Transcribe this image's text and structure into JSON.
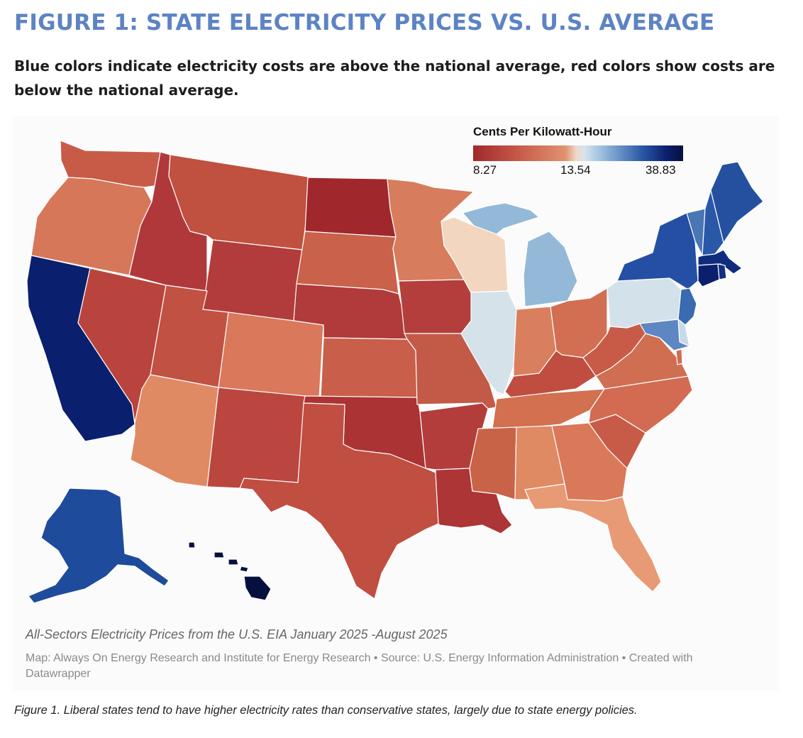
{
  "header": {
    "title": "FIGURE 1: STATE ELECTRICITY PRICES VS. U.S. AVERAGE",
    "subtitle": "Blue colors indicate electricity costs are above the national average, red colors show costs are below the national average."
  },
  "legend": {
    "title": "Cents Per Kilowatt-Hour",
    "min_label": "8.27",
    "mid_label": "13.54",
    "max_label": "38.83",
    "min": 8.27,
    "mid": 13.54,
    "max": 38.83
  },
  "colors": {
    "lowest": "#a0282c",
    "low": "#c85b48",
    "moderate_low": "#d7775a",
    "near_avg_low": "#e4946c",
    "wisconsin_tone": "#f2d6c0",
    "near_avg_high": "#d6e2ea",
    "above": "#8fb6d8",
    "high": "#2f5fae",
    "very_high": "#0f2d7e",
    "highest": "#06103f",
    "title_blue": "#5d83c4"
  },
  "map": {
    "caption": "All-Sectors Electricity Prices from the U.S. EIA January 2025 -August 2025",
    "credits": "Map: Always On Energy Research and Institute for Energy Research • Source: U.S. Energy Information Administration • Created with Datawrapper",
    "states": [
      {
        "id": "WA",
        "color": "#c85b48"
      },
      {
        "id": "OR",
        "color": "#d7775a"
      },
      {
        "id": "CA",
        "color": "#0a1f6e"
      },
      {
        "id": "NV",
        "color": "#b9443d"
      },
      {
        "id": "ID",
        "color": "#b0383a"
      },
      {
        "id": "MT",
        "color": "#c0503f"
      },
      {
        "id": "WY",
        "color": "#b23c3b"
      },
      {
        "id": "UT",
        "color": "#c15142"
      },
      {
        "id": "AZ",
        "color": "#e08a64"
      },
      {
        "id": "CO",
        "color": "#d9785a"
      },
      {
        "id": "NM",
        "color": "#bb463f"
      },
      {
        "id": "ND",
        "color": "#a0282c"
      },
      {
        "id": "SD",
        "color": "#c9614b"
      },
      {
        "id": "NE",
        "color": "#b13a3a"
      },
      {
        "id": "KS",
        "color": "#c95f4a"
      },
      {
        "id": "OK",
        "color": "#ab3334"
      },
      {
        "id": "TX",
        "color": "#c04e41"
      },
      {
        "id": "MN",
        "color": "#d77c5d"
      },
      {
        "id": "IA",
        "color": "#b43e3b"
      },
      {
        "id": "MO",
        "color": "#c35a47"
      },
      {
        "id": "AR",
        "color": "#b23d3b"
      },
      {
        "id": "LA",
        "color": "#ad3535"
      },
      {
        "id": "WI",
        "color": "#f2d6c0"
      },
      {
        "id": "IL",
        "color": "#d6e2ea"
      },
      {
        "id": "MI",
        "color": "#94b9d8"
      },
      {
        "id": "IN",
        "color": "#da7f5e"
      },
      {
        "id": "OH",
        "color": "#d26f53"
      },
      {
        "id": "KY",
        "color": "#bf4d40"
      },
      {
        "id": "TN",
        "color": "#d2704f"
      },
      {
        "id": "MS",
        "color": "#c96348"
      },
      {
        "id": "AL",
        "color": "#df8a63"
      },
      {
        "id": "GA",
        "color": "#d9795a"
      },
      {
        "id": "FL",
        "color": "#e79a74"
      },
      {
        "id": "SC",
        "color": "#c85b48"
      },
      {
        "id": "NC",
        "color": "#d26b51"
      },
      {
        "id": "VA",
        "color": "#d06e52"
      },
      {
        "id": "WV",
        "color": "#c85b48"
      },
      {
        "id": "PA",
        "color": "#d3e1ea"
      },
      {
        "id": "NY",
        "color": "#244fa4"
      },
      {
        "id": "VT",
        "color": "#4a76b4"
      },
      {
        "id": "NH",
        "color": "#2a58a8"
      },
      {
        "id": "ME",
        "color": "#24509f"
      },
      {
        "id": "MA",
        "color": "#0f2d7e"
      },
      {
        "id": "CT",
        "color": "#0a1f6e"
      },
      {
        "id": "RI",
        "color": "#122f80"
      },
      {
        "id": "NJ",
        "color": "#3a6ab0"
      },
      {
        "id": "DE",
        "color": "#c9dbe8"
      },
      {
        "id": "MD",
        "color": "#5d86c2"
      },
      {
        "id": "DC",
        "color": "#d26b51"
      },
      {
        "id": "AK",
        "color": "#1f4b9c"
      },
      {
        "id": "HI",
        "color": "#06103f"
      }
    ]
  },
  "footnote": "Figure 1. Liberal states tend to have higher electricity rates than conservative states, largely due to state energy policies."
}
